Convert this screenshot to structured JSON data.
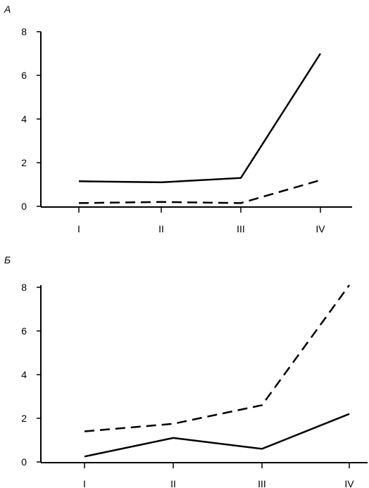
{
  "chart_data": [
    {
      "type": "line",
      "panel_label": "А",
      "categories": [
        "I",
        "II",
        "III",
        "IV"
      ],
      "yticks": [
        "0",
        "2",
        "4",
        "6",
        "8"
      ],
      "ylim": [
        0,
        8
      ],
      "grid": false,
      "series": [
        {
          "style": "solid",
          "values": [
            1.15,
            1.1,
            1.3,
            7.0
          ]
        },
        {
          "style": "dashed",
          "values": [
            0.15,
            0.2,
            0.15,
            1.2
          ]
        }
      ]
    },
    {
      "type": "line",
      "panel_label": "Б",
      "categories": [
        "I",
        "II",
        "III",
        "IV"
      ],
      "yticks": [
        "0",
        "2",
        "4",
        "6",
        "8"
      ],
      "ylim": [
        0,
        8
      ],
      "grid": false,
      "series": [
        {
          "style": "solid",
          "values": [
            0.25,
            1.1,
            0.6,
            2.2
          ]
        },
        {
          "style": "dashed",
          "values": [
            1.4,
            1.75,
            2.6,
            8.1
          ]
        }
      ]
    }
  ]
}
